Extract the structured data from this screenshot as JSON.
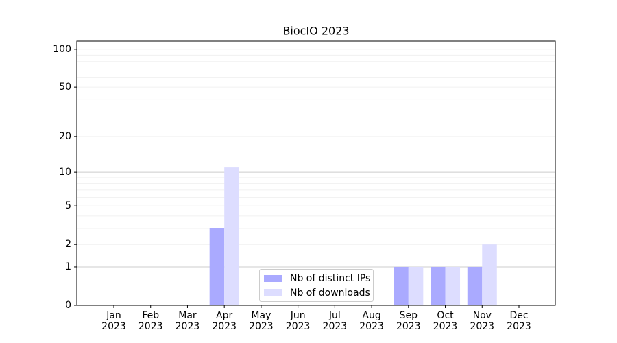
{
  "chart_data": {
    "type": "bar",
    "title": "BiocIO 2023",
    "categories": [
      "Jan 2023",
      "Feb 2023",
      "Mar 2023",
      "Apr 2023",
      "May 2023",
      "Jun 2023",
      "Jul 2023",
      "Aug 2023",
      "Sep 2023",
      "Oct 2023",
      "Nov 2023",
      "Dec 2023"
    ],
    "series": [
      {
        "name": "Nb of distinct IPs",
        "color": "#aaaaff",
        "values": [
          0,
          0,
          0,
          3,
          0,
          0,
          0,
          0,
          1,
          1,
          1,
          0
        ]
      },
      {
        "name": "Nb of downloads",
        "color": "#ddddff",
        "values": [
          0,
          0,
          0,
          11,
          0,
          0,
          0,
          0,
          1,
          1,
          2,
          0
        ]
      }
    ],
    "yscale": "log1p",
    "ylim": [
      0,
      116
    ],
    "yticks": [
      0,
      1,
      2,
      5,
      10,
      20,
      50,
      100
    ],
    "major_grid": [
      1,
      10
    ],
    "minor_grid": [
      2,
      3,
      4,
      5,
      6,
      7,
      8,
      9,
      20,
      30,
      40,
      50,
      60,
      70,
      80,
      90,
      100
    ],
    "legend": "lower center"
  }
}
